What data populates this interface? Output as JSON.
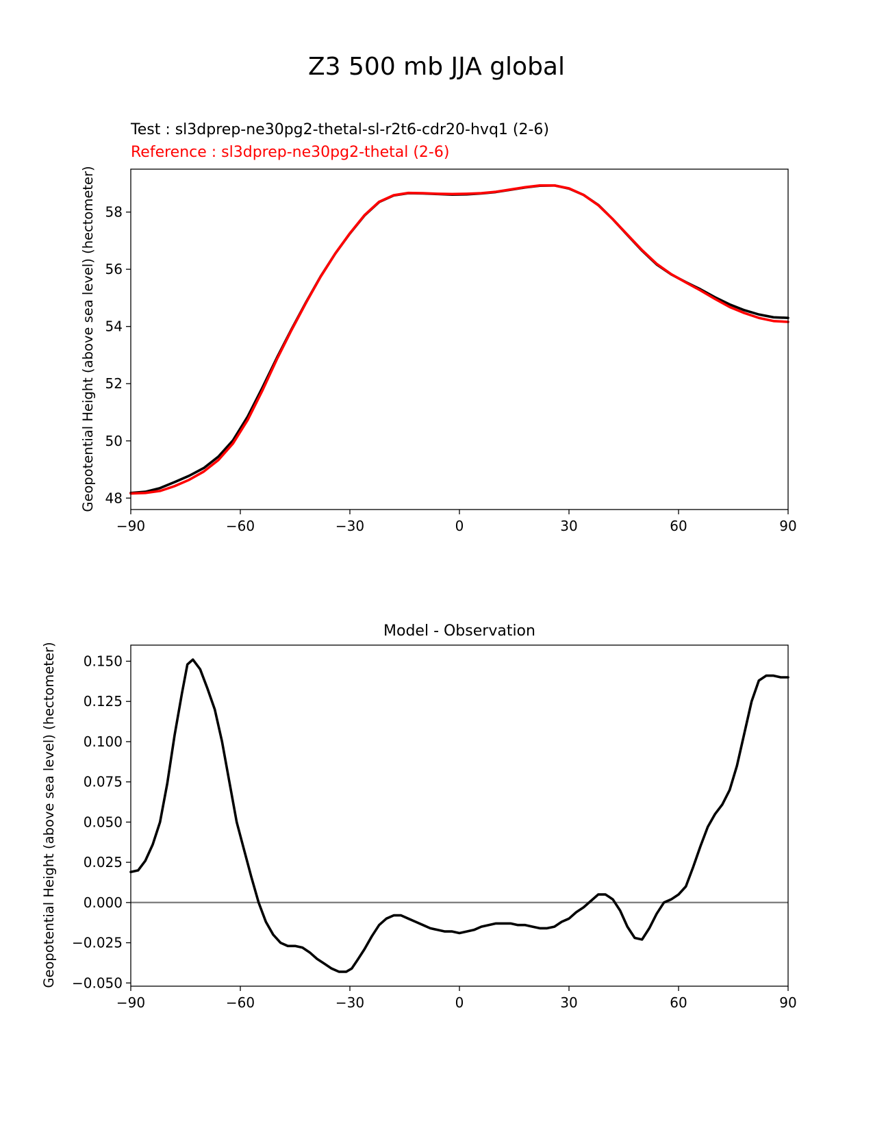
{
  "figure": {
    "title": "Z3 500 mb JJA global"
  },
  "colors": {
    "test": "#000000",
    "reference": "#ff0000",
    "zero_line": "#808080",
    "axes": "#000000"
  },
  "chart_data": [
    {
      "type": "line",
      "title": "",
      "test_label": "Test : sl3dprep-ne30pg2-thetal-sl-r2t6-cdr20-hvq1 (2-6)",
      "reference_label": "Reference : sl3dprep-ne30pg2-thetal (2-6)",
      "xlabel": "",
      "ylabel": "Geopotential Height (above sea level) (hectometer)",
      "xlim": [
        -90,
        90
      ],
      "ylim": [
        47.6,
        59.5
      ],
      "xticks": [
        -90,
        -60,
        -30,
        0,
        30,
        60,
        90
      ],
      "xtick_labels": [
        "−90",
        "−60",
        "−30",
        "0",
        "30",
        "60",
        "90"
      ],
      "yticks": [
        48,
        50,
        52,
        54,
        56,
        58
      ],
      "ytick_labels": [
        "48",
        "50",
        "52",
        "54",
        "56",
        "58"
      ],
      "series": [
        {
          "name": "Test",
          "color": "#000000",
          "x": [
            -90,
            -86,
            -82,
            -78,
            -74,
            -70,
            -66,
            -62,
            -58,
            -54,
            -50,
            -46,
            -42,
            -38,
            -34,
            -30,
            -26,
            -22,
            -18,
            -14,
            -10,
            -6,
            -2,
            2,
            6,
            10,
            14,
            18,
            22,
            26,
            30,
            34,
            38,
            42,
            46,
            50,
            54,
            58,
            62,
            66,
            70,
            74,
            78,
            82,
            86,
            90
          ],
          "values": [
            48.18,
            48.22,
            48.35,
            48.56,
            48.78,
            49.05,
            49.45,
            50.02,
            50.85,
            51.85,
            52.9,
            53.9,
            54.85,
            55.75,
            56.55,
            57.25,
            57.88,
            58.35,
            58.58,
            58.66,
            58.65,
            58.63,
            58.61,
            58.62,
            58.65,
            58.7,
            58.78,
            58.86,
            58.92,
            58.93,
            58.82,
            58.6,
            58.25,
            57.75,
            57.2,
            56.65,
            56.17,
            55.82,
            55.55,
            55.3,
            55.02,
            54.77,
            54.57,
            54.42,
            54.32,
            54.3
          ]
        },
        {
          "name": "Reference",
          "color": "#ff0000",
          "x": [
            -90,
            -86,
            -82,
            -78,
            -74,
            -70,
            -66,
            -62,
            -58,
            -54,
            -50,
            -46,
            -42,
            -38,
            -34,
            -30,
            -26,
            -22,
            -18,
            -14,
            -10,
            -6,
            -2,
            2,
            6,
            10,
            14,
            18,
            22,
            26,
            30,
            34,
            38,
            42,
            46,
            50,
            54,
            58,
            62,
            66,
            70,
            74,
            78,
            82,
            86,
            90
          ],
          "values": [
            48.16,
            48.18,
            48.25,
            48.42,
            48.64,
            48.93,
            49.33,
            49.91,
            50.73,
            51.75,
            52.85,
            53.87,
            54.83,
            55.74,
            56.55,
            57.26,
            57.89,
            58.36,
            58.59,
            58.67,
            58.66,
            58.64,
            58.63,
            58.64,
            58.66,
            58.71,
            58.79,
            58.87,
            58.93,
            58.93,
            58.83,
            58.6,
            58.24,
            57.75,
            57.21,
            56.67,
            56.19,
            55.83,
            55.54,
            55.26,
            54.96,
            54.68,
            54.47,
            54.3,
            54.19,
            54.16
          ]
        }
      ]
    },
    {
      "type": "line",
      "title": "Model - Observation",
      "xlabel": "",
      "ylabel": "Geopotential Height (above sea level) (hectometer)",
      "xlim": [
        -90,
        90
      ],
      "ylim": [
        -0.052,
        0.16
      ],
      "xticks": [
        -90,
        -60,
        -30,
        0,
        30,
        60,
        90
      ],
      "xtick_labels": [
        "−90",
        "−60",
        "−30",
        "0",
        "30",
        "60",
        "90"
      ],
      "yticks": [
        -0.05,
        -0.025,
        0,
        0.025,
        0.05,
        0.075,
        0.1,
        0.125,
        0.15
      ],
      "ytick_labels": [
        "−0.050",
        "−0.025",
        "0.000",
        "0.025",
        "0.050",
        "0.075",
        "0.100",
        "0.125",
        "0.150"
      ],
      "zero_line": 0,
      "series": [
        {
          "name": "Model - Observation",
          "color": "#000000",
          "x": [
            -90,
            -88,
            -86,
            -84,
            -82,
            -80,
            -78,
            -76,
            -74.5,
            -73,
            -71,
            -69,
            -67,
            -65,
            -63,
            -61,
            -59,
            -57,
            -55,
            -53,
            -51,
            -49,
            -47,
            -45,
            -43,
            -41,
            -39,
            -37,
            -35,
            -33,
            -31,
            -29.5,
            -28,
            -26,
            -24,
            -22,
            -20,
            -18,
            -16,
            -14,
            -12,
            -10,
            -8,
            -6,
            -4,
            -2,
            0,
            2,
            4,
            6,
            8,
            10,
            12,
            14,
            16,
            18,
            20,
            22,
            24,
            26,
            28,
            30,
            32,
            34,
            36,
            38,
            40,
            42,
            44,
            46,
            48,
            50,
            52,
            54,
            56,
            58,
            60,
            62,
            64,
            66,
            68,
            70,
            72,
            74,
            76,
            78,
            80,
            82,
            84,
            86,
            88,
            90
          ],
          "values": [
            0.019,
            0.02,
            0.026,
            0.036,
            0.05,
            0.074,
            0.104,
            0.13,
            0.148,
            0.151,
            0.145,
            0.133,
            0.12,
            0.1,
            0.075,
            0.05,
            0.033,
            0.016,
            0.0,
            -0.012,
            -0.02,
            -0.025,
            -0.027,
            -0.027,
            -0.028,
            -0.031,
            -0.035,
            -0.038,
            -0.041,
            -0.043,
            -0.043,
            -0.041,
            -0.036,
            -0.029,
            -0.021,
            -0.014,
            -0.01,
            -0.008,
            -0.008,
            -0.01,
            -0.012,
            -0.014,
            -0.016,
            -0.017,
            -0.018,
            -0.018,
            -0.019,
            -0.018,
            -0.017,
            -0.015,
            -0.014,
            -0.013,
            -0.013,
            -0.013,
            -0.014,
            -0.014,
            -0.015,
            -0.016,
            -0.016,
            -0.015,
            -0.012,
            -0.01,
            -0.006,
            -0.003,
            0.001,
            0.005,
            0.005,
            0.002,
            -0.005,
            -0.015,
            -0.022,
            -0.023,
            -0.016,
            -0.007,
            0.0,
            0.002,
            0.005,
            0.01,
            0.022,
            0.035,
            0.047,
            0.055,
            0.061,
            0.07,
            0.085,
            0.105,
            0.125,
            0.138,
            0.141,
            0.141,
            0.14,
            0.14
          ]
        }
      ]
    }
  ]
}
